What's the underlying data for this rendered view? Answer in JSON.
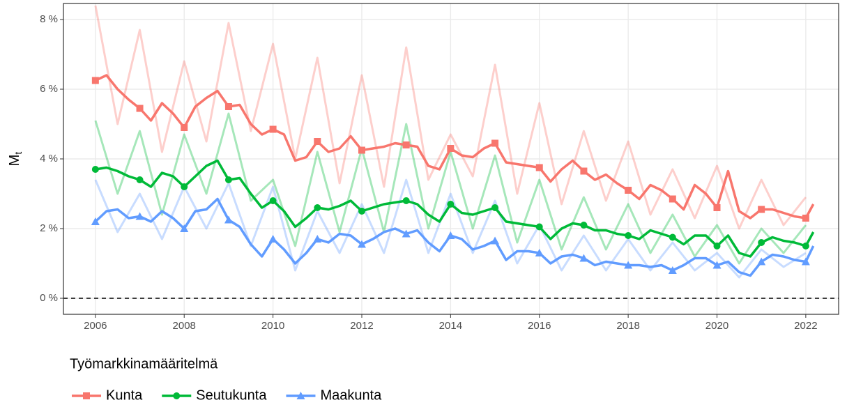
{
  "chart_data": {
    "type": "line",
    "ylabel": "M",
    "ylabel_sub": "t",
    "legend_title": "Työmarkkinamääritelmä",
    "legend": "bottom",
    "xlim": [
      2005.28,
      2022.74
    ],
    "xticks": [
      2006,
      2008,
      2010,
      2012,
      2014,
      2016,
      2018,
      2020,
      2022
    ],
    "ylim": [
      -0.46,
      8.46
    ],
    "yticks": [
      {
        "value": 0,
        "label": "0 %"
      },
      {
        "value": 2,
        "label": "2 %"
      },
      {
        "value": 4,
        "label": "4 %"
      },
      {
        "value": 6,
        "label": "6 %"
      },
      {
        "value": 8,
        "label": "8 %"
      }
    ],
    "grid": true,
    "hline": 0,
    "x": [
      2006,
      2006.25,
      2006.5,
      2006.75,
      2007,
      2007.25,
      2007.5,
      2007.75,
      2008,
      2008.25,
      2008.5,
      2008.75,
      2009,
      2009.25,
      2009.5,
      2009.75,
      2010,
      2010.25,
      2010.5,
      2010.75,
      2011,
      2011.25,
      2011.5,
      2011.75,
      2012,
      2012.25,
      2012.5,
      2012.75,
      2013,
      2013.25,
      2013.5,
      2013.75,
      2014,
      2014.25,
      2014.5,
      2014.75,
      2015,
      2015.25,
      2015.5,
      2015.75,
      2016,
      2016.25,
      2016.5,
      2016.75,
      2017,
      2017.25,
      2017.5,
      2017.75,
      2018,
      2018.25,
      2018.5,
      2018.75,
      2019,
      2019.25,
      2019.5,
      2019.75,
      2020,
      2020.25,
      2020.5,
      2020.75,
      2021,
      2021.25,
      2021.5,
      2021.75,
      2022,
      2022.17
    ],
    "series": [
      {
        "name": "Kunta",
        "color": "#f8766d",
        "marker": "square",
        "values": [
          6.25,
          6.4,
          6.0,
          5.7,
          5.45,
          5.1,
          5.6,
          5.3,
          4.9,
          5.5,
          5.75,
          5.95,
          5.5,
          5.55,
          5.0,
          4.7,
          4.85,
          4.7,
          3.95,
          4.05,
          4.5,
          4.2,
          4.3,
          4.65,
          4.25,
          4.3,
          4.35,
          4.45,
          4.4,
          4.35,
          3.8,
          3.7,
          4.3,
          4.1,
          4.05,
          4.3,
          4.45,
          3.9,
          3.85,
          3.8,
          3.75,
          3.35,
          3.7,
          3.95,
          3.65,
          3.4,
          3.55,
          3.3,
          3.1,
          2.85,
          3.25,
          3.1,
          2.85,
          2.55,
          3.25,
          3.0,
          2.6,
          3.65,
          2.5,
          2.3,
          2.55,
          2.55,
          2.45,
          2.35,
          2.3,
          2.7
        ]
      },
      {
        "name": "Seutukunta",
        "color": "#00ba38",
        "marker": "circle",
        "values": [
          3.7,
          3.75,
          3.65,
          3.5,
          3.4,
          3.2,
          3.6,
          3.5,
          3.2,
          3.5,
          3.8,
          3.95,
          3.4,
          3.45,
          3.0,
          2.6,
          2.8,
          2.5,
          2.05,
          2.3,
          2.6,
          2.55,
          2.65,
          2.8,
          2.5,
          2.6,
          2.7,
          2.75,
          2.8,
          2.7,
          2.4,
          2.2,
          2.7,
          2.45,
          2.4,
          2.5,
          2.6,
          2.2,
          2.15,
          2.1,
          2.05,
          1.7,
          2.0,
          2.15,
          2.1,
          1.95,
          1.95,
          1.85,
          1.8,
          1.7,
          1.95,
          1.85,
          1.75,
          1.55,
          1.8,
          1.8,
          1.5,
          1.8,
          1.3,
          1.2,
          1.6,
          1.75,
          1.65,
          1.6,
          1.5,
          1.9
        ]
      },
      {
        "name": "Maakunta",
        "color": "#619cff",
        "marker": "triangle",
        "values": [
          2.2,
          2.5,
          2.55,
          2.3,
          2.35,
          2.2,
          2.5,
          2.3,
          2.0,
          2.5,
          2.55,
          2.85,
          2.25,
          2.05,
          1.55,
          1.2,
          1.7,
          1.4,
          1.0,
          1.3,
          1.7,
          1.6,
          1.85,
          1.8,
          1.55,
          1.7,
          1.9,
          2.0,
          1.85,
          1.95,
          1.6,
          1.35,
          1.8,
          1.7,
          1.4,
          1.5,
          1.65,
          1.1,
          1.35,
          1.35,
          1.3,
          1.0,
          1.2,
          1.25,
          1.15,
          0.95,
          1.05,
          1.0,
          0.95,
          0.95,
          0.9,
          0.95,
          0.8,
          0.95,
          1.15,
          1.15,
          0.95,
          1.05,
          0.75,
          0.65,
          1.05,
          1.25,
          1.2,
          1.1,
          1.05,
          1.5
        ]
      }
    ],
    "raw_x": [
      2006,
      2006.5,
      2007,
      2007.5,
      2008,
      2008.5,
      2009,
      2009.5,
      2010,
      2010.5,
      2011,
      2011.5,
      2012,
      2012.5,
      2013,
      2013.5,
      2014,
      2014.5,
      2015,
      2015.5,
      2016,
      2016.5,
      2017,
      2017.5,
      2018,
      2018.5,
      2019,
      2019.5,
      2020,
      2020.5,
      2021,
      2021.5,
      2022
    ],
    "raw_series": [
      {
        "color": "#f8766d",
        "values": [
          8.4,
          5.0,
          7.7,
          4.2,
          6.8,
          4.5,
          7.9,
          4.8,
          7.3,
          4.0,
          6.9,
          3.3,
          6.4,
          3.2,
          7.2,
          3.4,
          4.7,
          3.5,
          6.7,
          3.0,
          5.6,
          2.7,
          4.8,
          2.8,
          4.5,
          2.4,
          3.7,
          2.3,
          3.8,
          2.0,
          3.4,
          2.1,
          2.9
        ]
      },
      {
        "color": "#00ba38",
        "values": [
          5.1,
          3.0,
          4.8,
          2.4,
          4.7,
          3.0,
          5.3,
          2.8,
          3.4,
          1.5,
          4.2,
          1.9,
          4.3,
          1.9,
          5.0,
          2.0,
          4.2,
          2.0,
          4.1,
          1.6,
          3.4,
          1.4,
          2.9,
          1.4,
          2.7,
          1.3,
          2.4,
          1.2,
          2.1,
          1.0,
          2.0,
          1.3,
          2.1
        ]
      },
      {
        "color": "#619cff",
        "values": [
          3.4,
          1.9,
          3.0,
          1.7,
          3.2,
          2.0,
          3.3,
          1.5,
          3.2,
          0.8,
          2.5,
          1.3,
          2.7,
          1.3,
          3.4,
          1.3,
          3.0,
          1.3,
          2.8,
          1.0,
          2.1,
          0.8,
          1.8,
          0.8,
          1.7,
          0.8,
          1.6,
          0.8,
          1.3,
          0.6,
          1.4,
          0.9,
          1.3
        ]
      }
    ]
  }
}
